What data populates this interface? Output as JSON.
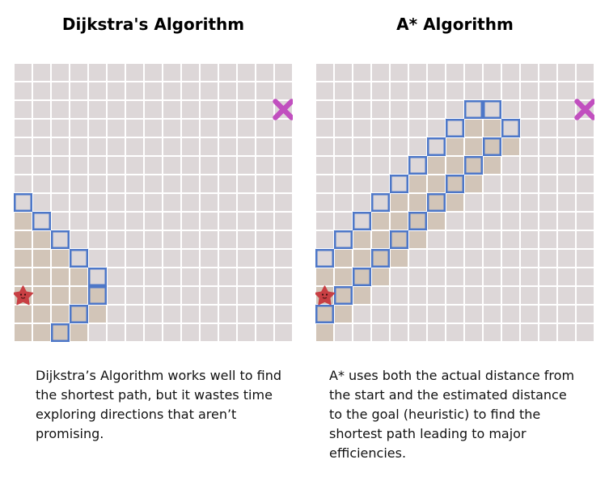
{
  "colors": {
    "grid_background": "#ddd7d8",
    "grid_lines": "#ffffff",
    "explored_fill": "#d2c5b8",
    "frontier_border": "#4d77c8",
    "goal_marker": "#c14fbf",
    "start_marker": "#c83f43"
  },
  "grid": {
    "columns": 15,
    "rows": 15
  },
  "panels": [
    {
      "title": "Dijkstra's Algorithm",
      "caption_lines": [
        "Dijkstra’s Algorithm works well to find",
        "the shortest path, but it wastes time",
        "exploring directions that aren’t",
        "promising."
      ],
      "start": {
        "col": 0,
        "row": 12
      },
      "goal": {
        "col": 14,
        "row": 2
      },
      "explored_rows": [
        {
          "row": 8,
          "from": 0,
          "to": 0
        },
        {
          "row": 9,
          "from": 0,
          "to": 1
        },
        {
          "row": 10,
          "from": 0,
          "to": 2
        },
        {
          "row": 11,
          "from": 0,
          "to": 3
        },
        {
          "row": 12,
          "from": 0,
          "to": 4
        },
        {
          "row": 13,
          "from": 0,
          "to": 4
        },
        {
          "row": 14,
          "from": 0,
          "to": 3
        },
        {
          "row": 15,
          "from": 0,
          "to": 2
        }
      ],
      "frontier": [
        [
          0,
          7
        ],
        [
          1,
          8
        ],
        [
          2,
          9
        ],
        [
          3,
          10
        ],
        [
          4,
          11
        ],
        [
          4,
          12
        ],
        [
          3,
          13
        ],
        [
          2,
          14
        ]
      ]
    },
    {
      "title": "A* Algorithm",
      "caption_lines": [
        "A* uses both the actual distance from",
        "the start and the estimated distance",
        "to the goal (heuristic) to find the",
        "shortest path leading to major",
        "efficiencies."
      ],
      "start": {
        "col": 0,
        "row": 12
      },
      "goal": {
        "col": 14,
        "row": 2
      },
      "explored_rows": [
        {
          "row": 3,
          "from": 8,
          "to": 9
        },
        {
          "row": 4,
          "from": 7,
          "to": 10
        },
        {
          "row": 5,
          "from": 6,
          "to": 9
        },
        {
          "row": 6,
          "from": 5,
          "to": 8
        },
        {
          "row": 7,
          "from": 4,
          "to": 7
        },
        {
          "row": 8,
          "from": 3,
          "to": 6
        },
        {
          "row": 9,
          "from": 2,
          "to": 5
        },
        {
          "row": 10,
          "from": 1,
          "to": 4
        },
        {
          "row": 11,
          "from": 0,
          "to": 3
        },
        {
          "row": 12,
          "from": 0,
          "to": 2
        },
        {
          "row": 13,
          "from": 0,
          "to": 1
        },
        {
          "row": 14,
          "from": 0,
          "to": 0
        }
      ],
      "frontier": [
        [
          8,
          2
        ],
        [
          9,
          2
        ],
        [
          7,
          3
        ],
        [
          10,
          3
        ],
        [
          9,
          4
        ],
        [
          6,
          4
        ],
        [
          8,
          5
        ],
        [
          5,
          5
        ],
        [
          7,
          6
        ],
        [
          4,
          6
        ],
        [
          6,
          7
        ],
        [
          3,
          7
        ],
        [
          5,
          8
        ],
        [
          2,
          8
        ],
        [
          4,
          9
        ],
        [
          1,
          9
        ],
        [
          0,
          10
        ],
        [
          3,
          10
        ],
        [
          2,
          11
        ],
        [
          1,
          12
        ],
        [
          0,
          13
        ]
      ]
    }
  ]
}
